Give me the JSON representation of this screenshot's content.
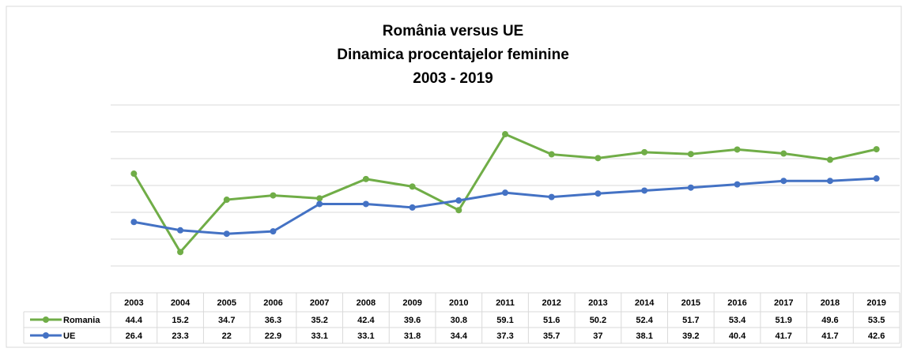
{
  "chart_data": {
    "type": "line",
    "title": [
      "România versus UE",
      "Dinamica procentajelor feminine",
      "2003 - 2019"
    ],
    "categories": [
      "2003",
      "2004",
      "2005",
      "2006",
      "2007",
      "2008",
      "2009",
      "2010",
      "2011",
      "2012",
      "2013",
      "2014",
      "2015",
      "2016",
      "2017",
      "2018",
      "2019"
    ],
    "series": [
      {
        "name": "Romania",
        "color": "#70ad47",
        "values": [
          44.4,
          15.2,
          34.7,
          36.3,
          35.2,
          42.4,
          39.6,
          30.8,
          59.1,
          51.6,
          50.2,
          52.4,
          51.7,
          53.4,
          51.9,
          49.6,
          53.5
        ]
      },
      {
        "name": "UE",
        "color": "#4472c4",
        "values": [
          26.4,
          23.3,
          22,
          22.9,
          33.1,
          33.1,
          31.8,
          34.4,
          37.3,
          35.7,
          37,
          38.1,
          39.2,
          40.4,
          41.7,
          41.7,
          42.6
        ]
      }
    ],
    "ylim": [
      0,
      70
    ],
    "yticks": [
      0,
      10,
      20,
      30,
      40,
      50,
      60,
      70
    ],
    "grid": true
  }
}
